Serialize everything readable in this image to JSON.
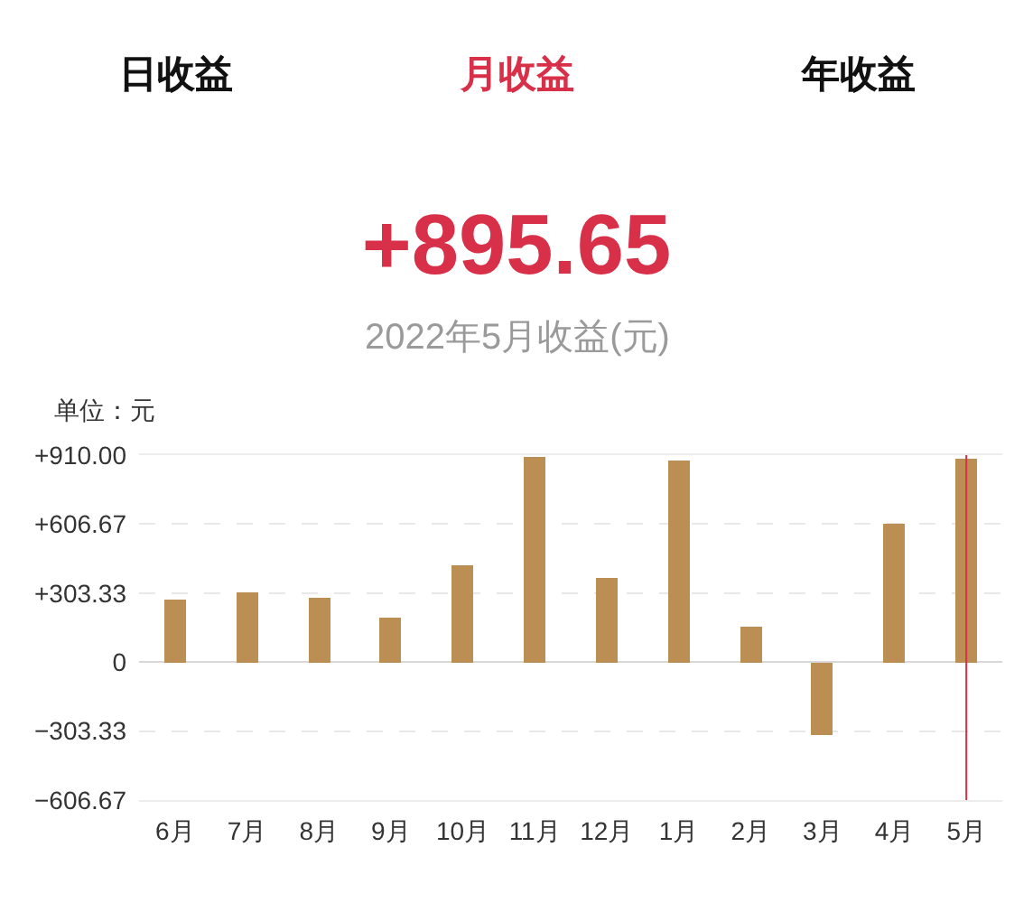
{
  "chart_data": {
    "type": "bar",
    "title": "+895.65",
    "subtitle": "2022年5月收益(元)",
    "ylabel": "单位：元",
    "annotations": [
      "日收益",
      "月收益",
      "年收益"
    ],
    "categories": [
      "6月",
      "7月",
      "8月",
      "9月",
      "10月",
      "11月",
      "12月",
      "1月",
      "2月",
      "3月",
      "4月",
      "5月"
    ],
    "values": [
      272,
      303,
      280,
      198,
      425,
      902,
      367,
      886,
      153,
      -322,
      612,
      896
    ],
    "color": "#bb8e54",
    "ylim": [
      -606.67,
      910
    ],
    "yticks": [
      {
        "value": -606.67,
        "label": "−606.67"
      },
      {
        "value": -303.33,
        "label": "−303.33"
      },
      0,
      {
        "value": 303.33,
        "label": "+303.33"
      },
      {
        "value": 606.67,
        "label": "+606.67"
      },
      {
        "value": 910,
        "label": "+910.00"
      }
    ],
    "grid": "y",
    "ref_lines": [
      {
        "axis": "x",
        "value": "5月",
        "color": "#d9304a"
      }
    ]
  }
}
